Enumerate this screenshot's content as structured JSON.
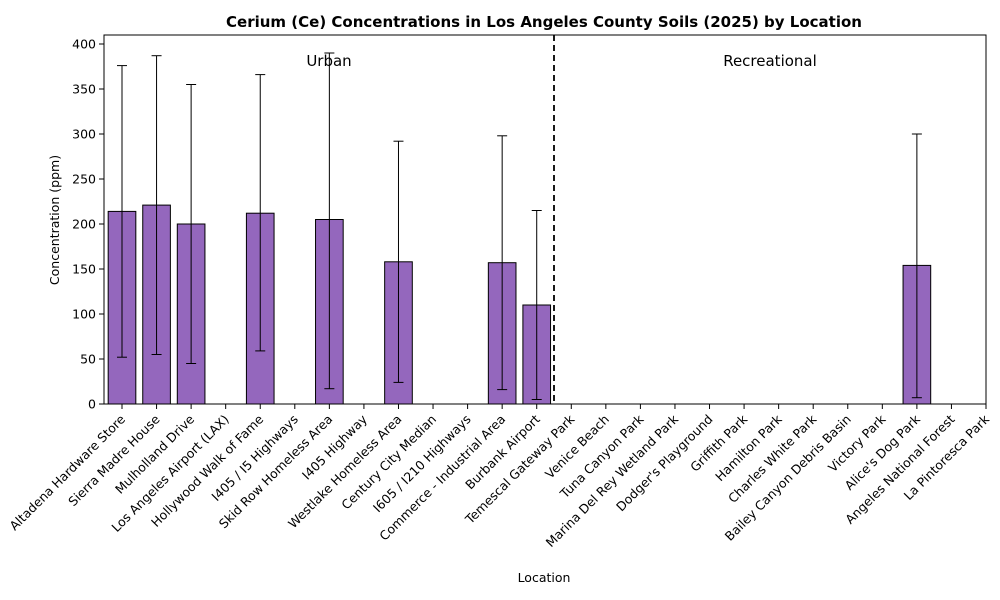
{
  "chart_data": {
    "type": "bar",
    "title": "Cerium (Ce) Concentrations in Los Angeles County Soils (2025) by Location",
    "xlabel": "Location",
    "ylabel": "Concentration (ppm)",
    "ylim": [
      0,
      410
    ],
    "yticks": [
      0,
      50,
      100,
      150,
      200,
      250,
      300,
      350,
      400
    ],
    "bar_color": "#9467bd",
    "edge_color": "#000000",
    "categories": [
      "Altadena Hardware Store",
      "Sierra Madre House",
      "Mulholland Drive",
      "Los Angeles Airport (LAX)",
      "Hollywood Walk of Fame",
      "I405 / I5 Highways",
      "Skid Row Homeless Area",
      "I405 Highway",
      "Westlake Homeless Area",
      "Century City Median",
      "I605 / I210 Highways",
      "Commerce - Industrial Area",
      "Burbank Airport",
      "Temescal Gateway Park",
      "Venice Beach",
      "Tuna Canyon Park",
      "Marina Del Rey Wetland Park",
      "Dodger's Playground",
      "Griffith Park",
      "Hamilton Park",
      "Charles White Park",
      "Bailey Canyon Debris Basin",
      "Victory Park",
      "Alice's Dog Park",
      "Angeles National Forest",
      "La Pintoresca Park"
    ],
    "values": [
      214,
      221,
      200,
      null,
      212,
      null,
      205,
      null,
      158,
      null,
      null,
      157,
      110,
      null,
      null,
      null,
      null,
      null,
      null,
      null,
      null,
      null,
      null,
      154,
      null,
      null
    ],
    "error_low": [
      52,
      55,
      45,
      null,
      59,
      null,
      17,
      null,
      24,
      null,
      null,
      16,
      5,
      null,
      null,
      null,
      null,
      null,
      null,
      null,
      null,
      null,
      null,
      7,
      null,
      null
    ],
    "error_high": [
      376,
      387,
      355,
      null,
      366,
      null,
      390,
      null,
      292,
      null,
      null,
      298,
      215,
      null,
      null,
      null,
      null,
      null,
      null,
      null,
      null,
      null,
      null,
      300,
      null,
      null
    ],
    "divider_after_index": 12,
    "regions": [
      {
        "label": "Urban",
        "start": 0,
        "end": 12
      },
      {
        "label": "Recreational",
        "start": 13,
        "end": 25
      }
    ]
  }
}
